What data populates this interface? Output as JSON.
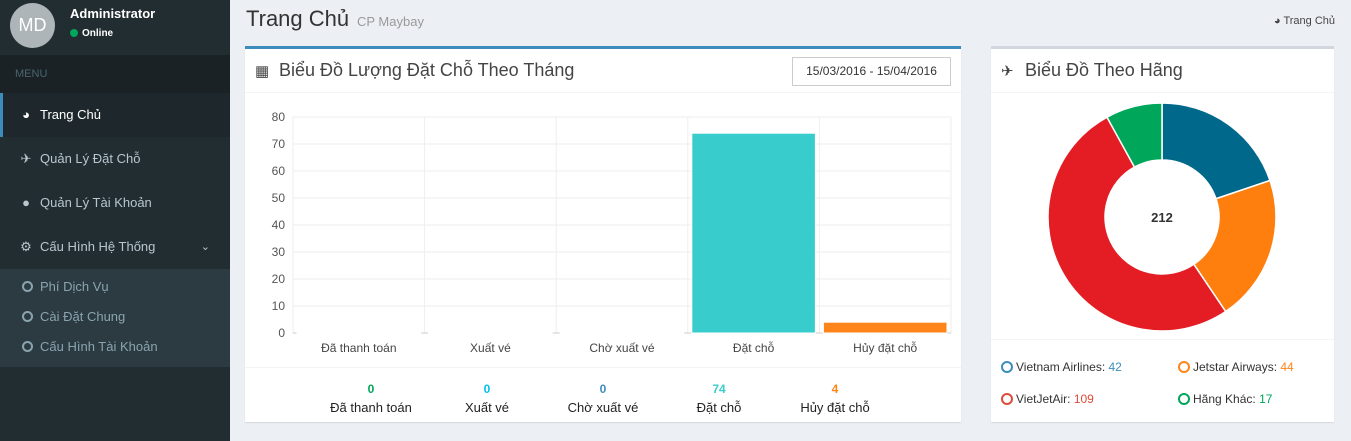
{
  "user": {
    "initials": "MD",
    "name": "Administrator",
    "status": "Online"
  },
  "sidebar": {
    "header": "MENU",
    "items": [
      {
        "label": "Trang Chủ",
        "icon": "dashboard-icon"
      },
      {
        "label": "Quản Lý Đặt Chỗ",
        "icon": "plane-icon"
      },
      {
        "label": "Quản Lý Tài Khoản",
        "icon": "users-icon"
      },
      {
        "label": "Cấu Hình Hệ Thống",
        "icon": "gear-icon"
      }
    ],
    "subitems": [
      {
        "label": "Phí Dịch Vụ"
      },
      {
        "label": "Cài Đặt Chung"
      },
      {
        "label": "Cấu Hình Tài Khoản"
      }
    ]
  },
  "header": {
    "title": "Trang Chủ",
    "subtitle": "CP Maybay",
    "breadcrumb": "Trang Chủ"
  },
  "main_box": {
    "title": "Biểu Đồ Lượng Đặt Chỗ Theo Tháng",
    "date_range": "15/03/2016 - 15/04/2016"
  },
  "side_box": {
    "title": "Biểu Đồ Theo Hãng"
  },
  "stats": [
    {
      "value": "0",
      "label": "Đã thanh toán",
      "color": "#00a65a"
    },
    {
      "value": "0",
      "label": "Xuất vé",
      "color": "#00c0ef"
    },
    {
      "value": "0",
      "label": "Chờ xuất vé",
      "color": "#3c8dbc"
    },
    {
      "value": "74",
      "label": "Đặt chỗ",
      "color": "#39cccc"
    },
    {
      "value": "4",
      "label": "Hủy đặt chỗ",
      "color": "#ff851b"
    }
  ],
  "legend": [
    {
      "name": "Vietnam Airlines:",
      "value": "42",
      "color": "#3c8dbc"
    },
    {
      "name": "Jetstar Airways:",
      "value": "44",
      "color": "#ff851b"
    },
    {
      "name": "VietJetAir:",
      "value": "109",
      "color": "#dd4b39"
    },
    {
      "name": "Hãng Khác:",
      "value": "17",
      "color": "#00a65a"
    }
  ],
  "chart_data": [
    {
      "type": "bar",
      "categories": [
        "Đã thanh toán",
        "Xuất vé",
        "Chờ xuất vé",
        "Đặt chỗ",
        "Hủy đặt chỗ"
      ],
      "values": [
        0,
        0,
        0,
        74,
        4
      ],
      "colors": [
        "#00a65a",
        "#00c0ef",
        "#3c8dbc",
        "#39cccc",
        "#ff851b"
      ],
      "yticks": [
        0,
        10,
        20,
        30,
        40,
        50,
        60,
        70,
        80
      ],
      "ylim": [
        0,
        80
      ],
      "grid": true
    },
    {
      "type": "pie",
      "labels": [
        "Vietnam Airlines",
        "Jetstar Airways",
        "VietJetAir",
        "Hãng Khác"
      ],
      "values": [
        42,
        44,
        109,
        17
      ],
      "colors": [
        "#00688b",
        "#ff7f0e",
        "#e31d23",
        "#00a65a"
      ],
      "center_label": "212"
    }
  ]
}
